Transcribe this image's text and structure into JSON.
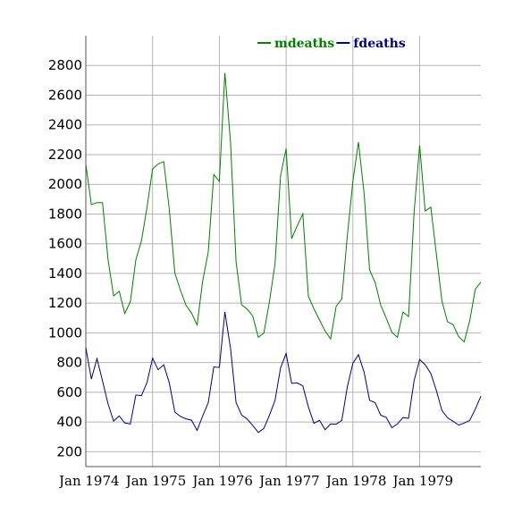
{
  "chart_data": {
    "type": "line",
    "x": [
      "Jan 1974",
      "Feb 1974",
      "Mar 1974",
      "Apr 1974",
      "May 1974",
      "Jun 1974",
      "Jul 1974",
      "Aug 1974",
      "Sep 1974",
      "Oct 1974",
      "Nov 1974",
      "Dec 1974",
      "Jan 1975",
      "Feb 1975",
      "Mar 1975",
      "Apr 1975",
      "May 1975",
      "Jun 1975",
      "Jul 1975",
      "Aug 1975",
      "Sep 1975",
      "Oct 1975",
      "Nov 1975",
      "Dec 1975",
      "Jan 1976",
      "Feb 1976",
      "Mar 1976",
      "Apr 1976",
      "May 1976",
      "Jun 1976",
      "Jul 1976",
      "Aug 1976",
      "Sep 1976",
      "Oct 1976",
      "Nov 1976",
      "Dec 1976",
      "Jan 1977",
      "Feb 1977",
      "Mar 1977",
      "Apr 1977",
      "May 1977",
      "Jun 1977",
      "Jul 1977",
      "Aug 1977",
      "Sep 1977",
      "Oct 1977",
      "Nov 1977",
      "Dec 1977",
      "Jan 1978",
      "Feb 1978",
      "Mar 1978",
      "Apr 1978",
      "May 1978",
      "Jun 1978",
      "Jul 1978",
      "Aug 1978",
      "Sep 1978",
      "Oct 1978",
      "Nov 1978",
      "Dec 1978",
      "Jan 1979",
      "Feb 1979",
      "Mar 1979",
      "Apr 1979",
      "May 1979",
      "Jun 1979",
      "Jul 1979",
      "Aug 1979",
      "Sep 1979",
      "Oct 1979",
      "Nov 1979",
      "Dec 1979"
    ],
    "series": [
      {
        "name": "mdeaths",
        "color": "#008000",
        "values": [
          2134,
          1863,
          1877,
          1877,
          1492,
          1249,
          1280,
          1131,
          1209,
          1492,
          1621,
          1846,
          2103,
          2137,
          2153,
          1833,
          1403,
          1288,
          1186,
          1133,
          1053,
          1347,
          1545,
          2066,
          2020,
          2750,
          2283,
          1479,
          1189,
          1160,
          1113,
          970,
          999,
          1208,
          1467,
          2059,
          2240,
          1634,
          1722,
          1801,
          1246,
          1162,
          1087,
          1013,
          959,
          1179,
          1229,
          1655,
          2019,
          2284,
          1942,
          1423,
          1340,
          1187,
          1098,
          1004,
          970,
          1140,
          1110,
          1812,
          2263,
          1820,
          1846,
          1531,
          1215,
          1075,
          1056,
          975,
          940,
          1081,
          1294,
          1341
        ]
      },
      {
        "name": "fdeaths",
        "color": "#000080",
        "values": [
          901,
          689,
          827,
          677,
          522,
          406,
          441,
          393,
          387,
          582,
          578,
          666,
          830,
          752,
          785,
          664,
          467,
          438,
          421,
          412,
          343,
          440,
          531,
          771,
          767,
          1141,
          896,
          532,
          447,
          420,
          376,
          330,
          357,
          445,
          546,
          764,
          862,
          660,
          663,
          643,
          502,
          392,
          411,
          348,
          387,
          385,
          411,
          638,
          796,
          853,
          737,
          546,
          530,
          446,
          431,
          362,
          387,
          430,
          425,
          679,
          821,
          785,
          727,
          612,
          478,
          429,
          405,
          379,
          393,
          411,
          487,
          574
        ]
      }
    ],
    "x_ticks": [
      "Jan 1974",
      "Jan 1975",
      "Jan 1976",
      "Jan 1977",
      "Jan 1978",
      "Jan 1979"
    ],
    "y_ticks": [
      200,
      400,
      600,
      800,
      1000,
      1200,
      1400,
      1600,
      1800,
      2000,
      2200,
      2400,
      2600,
      2800
    ],
    "ylim": [
      100,
      3000
    ],
    "legend_position": "top-right",
    "grid": true
  }
}
